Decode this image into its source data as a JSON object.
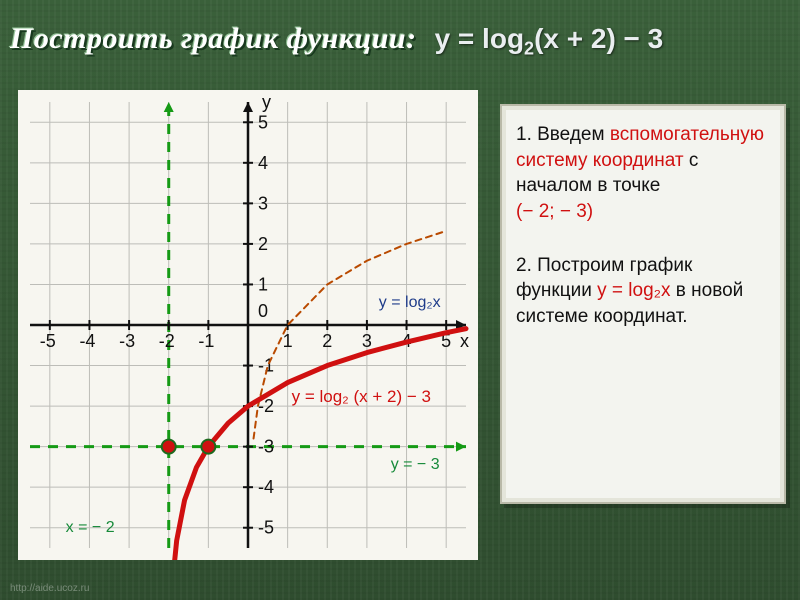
{
  "title": {
    "left": "Построить график функции:",
    "right_html": "y = log<sub>2</sub>(x + 2) − 3"
  },
  "sidebar": {
    "step1_pre": "1. Введем ",
    "step1_red": "вспомогательную систему координат",
    "step1_post": " с началом в точке ",
    "step1_point": "(− 2; − 3)",
    "step2_pre": "2. Построим график функции   ",
    "step2_red": "y = log₂x",
    "step2_post": " в новой системе координат."
  },
  "chart": {
    "background_color": "#f7f6f0",
    "grid_color": "#bdbdb8",
    "axis_color": "#111111",
    "orig_curve_color": "#b94a00",
    "orig_curve_width": 2,
    "shifted_curve_color": "#d01010",
    "shifted_curve_width": 5,
    "dashed_color": "#159a15",
    "dashed_width": 3,
    "marker_fill": "#d01010",
    "marker_stroke": "#1e6a1e",
    "marker_r": 7,
    "xmin": -5.5,
    "xmax": 5.5,
    "ymin": -5.5,
    "ymax": 5.5,
    "xticks": [
      -5,
      -4,
      -3,
      -2,
      -1,
      1,
      2,
      3,
      4,
      5
    ],
    "yticks": [
      -5,
      -4,
      -3,
      -2,
      -1,
      1,
      2,
      3,
      4,
      5
    ],
    "axis_labels": {
      "x": "x",
      "y": "y",
      "origin": "0"
    },
    "annotations": {
      "orig_label": "y = log₂x",
      "shifted_label": "y = log₂ (x + 2) − 3",
      "hline_label": "y = − 3",
      "vline_label": "x = − 2"
    },
    "annotation_color": {
      "orig": "#1f3c8a",
      "shifted": "#d01010",
      "lines": "#178a3a"
    },
    "tick_fontsize": 18,
    "label_fontsize": 18,
    "vline_x": -2,
    "hline_y": -3,
    "markers": [
      {
        "x": -2,
        "y": -3
      },
      {
        "x": -1,
        "y": -3
      }
    ],
    "orig_curve_points": [
      [
        0.14,
        -2.8
      ],
      [
        0.25,
        -2.0
      ],
      [
        0.5,
        -1.0
      ],
      [
        1,
        0
      ],
      [
        2,
        1
      ],
      [
        3,
        1.585
      ],
      [
        4,
        2
      ],
      [
        5,
        2.32
      ]
    ],
    "shifted_curve_points": [
      [
        -1.9,
        -6.3
      ],
      [
        -1.8,
        -5.32
      ],
      [
        -1.6,
        -4.32
      ],
      [
        -1.3,
        -3.51
      ],
      [
        -1,
        -3
      ],
      [
        -0.5,
        -2.42
      ],
      [
        0,
        -2.0
      ],
      [
        1,
        -1.42
      ],
      [
        2,
        -1.0
      ],
      [
        3,
        -0.68
      ],
      [
        4,
        -0.42
      ],
      [
        5,
        -0.19
      ],
      [
        5.5,
        -0.09
      ]
    ]
  },
  "footer": "http://aide.ucoz.ru"
}
